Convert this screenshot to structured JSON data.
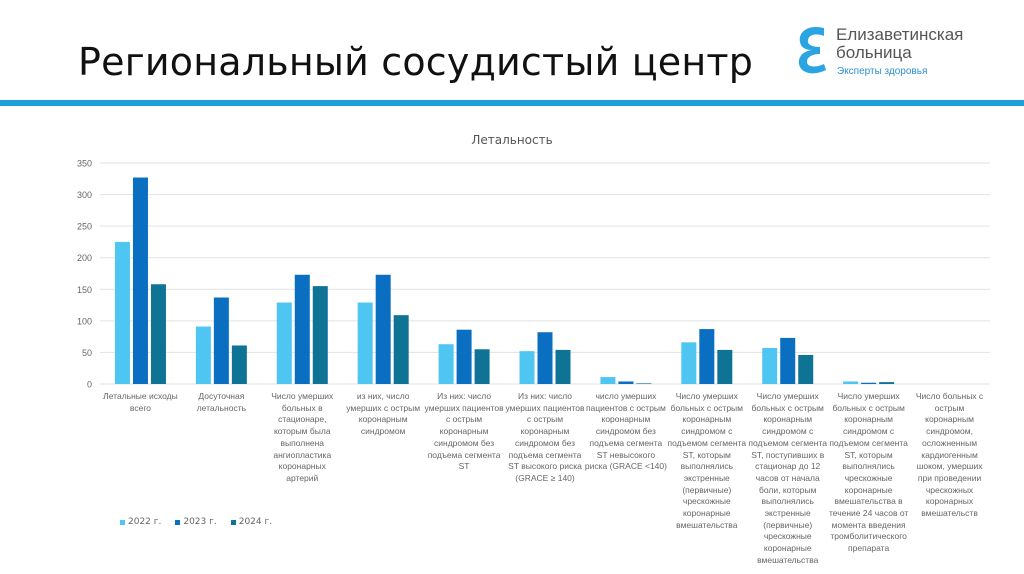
{
  "header": {
    "title": "Региональный сосудистый центр",
    "logo": {
      "name": "Елизаветинская\nбольница",
      "subtitle": "Эксперты здоровья"
    },
    "stripe_color": "#1fa0dc"
  },
  "chart_data": {
    "type": "bar",
    "title": "Летальность",
    "ylim": [
      0,
      350
    ],
    "yticks": [
      0,
      50,
      100,
      150,
      200,
      250,
      300,
      350
    ],
    "grid": true,
    "legend_position": "bottom-left",
    "categories": [
      "Летальные исходы\nвсего",
      "Досуточная\nлетальность",
      "Число умерших\nбольных в\nстационаре,\nкоторым была\nвыполнена\nангиопластика\nкоронарных\nартерий",
      "из них, число\nумерших с острым\nкоронарным\nсиндромом",
      "Из них: число\nумерших пациентов\nс острым\nкоронарным\nсиндромом без\nподъема сегмента\nST",
      "Из них: число\nумерших пациентов\nс острым\nкоронарным\nсиндромом без\nподъема сегмента\nST высокого риска\n(GRACE ≥ 140)",
      "число умерших\nпациентов с острым\nкоронарным\nсиндромом без\nподъема сегмента\nST невысокого\nриска (GRACE <140)",
      "Число умерших\nбольных с острым\nкоронарным\nсиндромом с\nподъемом сегмента\nST, которым\nвыполнялись\nэкстренные\n(первичные)\nчрескожные\nкоронарные\nвмешательства",
      "Число умерших\nбольных с острым\nкоронарным\nсиндромом с\nподъемом сегмента\nST, поступивших в\nстационар до 12\nчасов от начала\nболи, которым\nвыполнялись\nэкстренные\n(первичные)\nчрескожные\nкоронарные\nвмешательства",
      "Число умерших\nбольных с острым\nкоронарным\nсиндромом с\nподъемом сегмента\nST, которым\nвыполнялись\nчрескожные\nкоронарные\nвмешательства в\nтечение 24 часов от\nмомента введения\nтромболитического\nпрепарата",
      "Число больных с\nострым\nкоронарным\nсиндромом,\nосложненным\nкардиогенным\nшоком, умерших\nпри проведении\nчрескожных\nкоронарных\nвмешательств"
    ],
    "series": [
      {
        "name": "2022 г.",
        "color": "#4fc6f2",
        "values": [
          225,
          91,
          129,
          129,
          63,
          52,
          11,
          66,
          57,
          4,
          0
        ]
      },
      {
        "name": "2023 г.",
        "color": "#0a6fc0",
        "values": [
          327,
          137,
          173,
          173,
          86,
          82,
          4,
          87,
          73,
          2,
          0
        ]
      },
      {
        "name": "2024 г.",
        "color": "#0f7396",
        "values": [
          158,
          61,
          155,
          109,
          55,
          54,
          1,
          54,
          46,
          3,
          0
        ]
      }
    ]
  }
}
